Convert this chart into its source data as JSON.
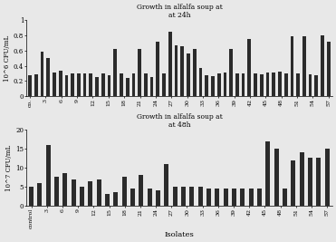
{
  "categories_24": [
    "co.",
    "3",
    "6",
    "9",
    "12",
    "15",
    "18",
    "21",
    "24",
    "27",
    "30",
    "33",
    "36",
    "39",
    "42",
    "45",
    "48",
    "51",
    "54",
    "57"
  ],
  "categories_48": [
    "control",
    "3",
    "6",
    "9",
    "12",
    "15",
    "18",
    "21",
    "24",
    "27",
    "30",
    "33",
    "36",
    "39",
    "42",
    "45",
    "48",
    "51",
    "54",
    "57"
  ],
  "values_24h": [
    0.27,
    0.29,
    0.59,
    0.5,
    0.31,
    0.33,
    0.28,
    0.3,
    0.3,
    0.3,
    0.3,
    0.25,
    0.3,
    0.27,
    0.62,
    0.3,
    0.24,
    0.3,
    0.62,
    0.3,
    0.25,
    0.72,
    0.3,
    0.85,
    0.67,
    0.66,
    0.56,
    0.62,
    0.37,
    0.28,
    0.26,
    0.3,
    0.31,
    0.62,
    0.3,
    0.3,
    0.75,
    0.3,
    0.29,
    0.31,
    0.31,
    0.32,
    0.3,
    0.79,
    0.3,
    0.79,
    0.29,
    0.28,
    0.8,
    0.72
  ],
  "values_48h": [
    5,
    6,
    16,
    7.5,
    8.5,
    7,
    5,
    6.5,
    7,
    3,
    3.5,
    7.5,
    4.5,
    8,
    4.5,
    4,
    11,
    5,
    5,
    5,
    5,
    4.5,
    4.5,
    4.5,
    4.5,
    4.5,
    4.5,
    4.5,
    17,
    15,
    4.5,
    12,
    14,
    12.5,
    12.5,
    15
  ],
  "title_24h": "Growth in alfalfa soup at\nat 24h",
  "title_48h": "Growth in alfalfa soup at\nat 48h",
  "ylabel_24h": "10^6 CFU/mL",
  "ylabel_48h": "10^7 CFU/mL",
  "xlabel": "Isolates",
  "ylim_24h": [
    0,
    1
  ],
  "ylim_48h": [
    0,
    20
  ],
  "yticks_24h": [
    0,
    0.2,
    0.4,
    0.6,
    0.8,
    1
  ],
  "yticks_48h": [
    0,
    5,
    10,
    15,
    20
  ],
  "bar_color": "#2b2b2b",
  "fig_facecolor": "#e8e8e8"
}
